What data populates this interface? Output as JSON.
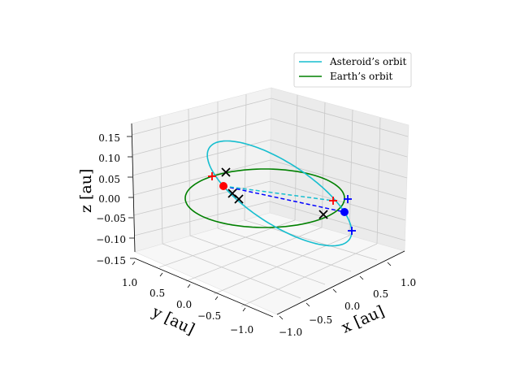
{
  "chart_data": {
    "type": "line",
    "projection": "3d",
    "xlabel": "$x$ [au]",
    "ylabel": "$y$ [au]",
    "zlabel": "$z$ [au]",
    "xlabel_text": "x [au]",
    "ylabel_text": "y [au]",
    "zlabel_text": "z [au]",
    "xlim": [
      -1.2,
      1.2
    ],
    "ylim": [
      -1.2,
      1.2
    ],
    "zlim": [
      -0.15,
      0.15
    ],
    "x_ticks": [
      "−1.0",
      "−0.5",
      "0.0",
      "0.5",
      "1.0"
    ],
    "y_ticks": [
      "1.0",
      "0.5",
      "0.0",
      "−0.5",
      "−1.0"
    ],
    "z_ticks": [
      "0.15",
      "0.10",
      "0.05",
      "0.00",
      "−0.05",
      "−0.10",
      "−0.15"
    ],
    "grid": true,
    "legend_position": "top-right",
    "series": [
      {
        "name": "Asteroid’s orbit",
        "color": "#17becf"
      },
      {
        "name": "Earth’s orbit",
        "color": "#008000"
      }
    ],
    "markers": {
      "red_dot": {
        "color": "#ff0000"
      },
      "blue_dot": {
        "color": "#0000ff"
      },
      "red_plus": {
        "color": "#ff0000"
      },
      "blue_plus": {
        "color": "#0000ff"
      },
      "black_cross": {
        "color": "#000000"
      }
    }
  }
}
